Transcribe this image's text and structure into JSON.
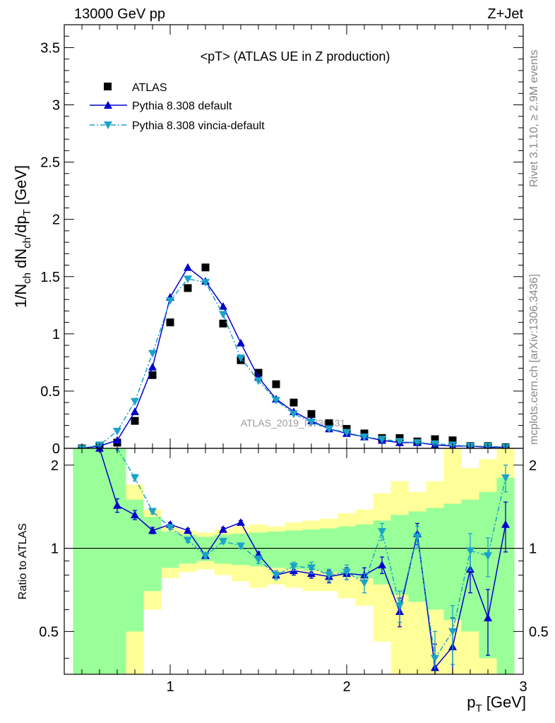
{
  "header": {
    "energy_label": "13000 GeV pp",
    "process_label": "Z+Jet",
    "plot_title": "<pT> (ATLAS UE in Z production)",
    "watermark": "ATLAS_2019_I1736531",
    "rivet_label": "Rivet 3.1.10, ≥ 2.9M events",
    "mcplots_label": "mcplots.cern.ch [arXiv:1306.3436]"
  },
  "chart_data": [
    {
      "type": "scatter",
      "panel": "main",
      "ylabel": "1/N_ch dN_ch/dp_T [GeV]",
      "xlim": [
        0.4,
        3.0
      ],
      "ylim": [
        0,
        3.7
      ],
      "yticks": [
        0,
        0.5,
        1,
        1.5,
        2,
        2.5,
        3,
        3.5
      ],
      "ytick_labels": [
        "0",
        "0.5",
        "1",
        "1.5",
        "2",
        "2.5",
        "3",
        "3.5"
      ],
      "legend_position": "top-left",
      "x": [
        0.5,
        0.6,
        0.7,
        0.8,
        0.9,
        1.0,
        1.1,
        1.2,
        1.3,
        1.4,
        1.5,
        1.6,
        1.7,
        1.8,
        1.9,
        2.0,
        2.1,
        2.2,
        2.3,
        2.4,
        2.5,
        2.6,
        2.7,
        2.8,
        2.9
      ],
      "series": [
        {
          "name": "ATLAS",
          "style": "square-marker",
          "color": "#000000",
          "values": [
            0.0,
            0.02,
            0.05,
            0.24,
            0.64,
            1.1,
            1.4,
            1.58,
            1.09,
            0.77,
            0.66,
            0.56,
            0.4,
            0.3,
            0.22,
            0.17,
            0.13,
            0.09,
            0.09,
            0.06,
            0.08,
            0.07,
            0.02,
            0.02,
            0.01
          ]
        },
        {
          "name": "Pythia 8.308 default",
          "style": "solid-line-triangle-up",
          "color": "#0000cc",
          "values": [
            0.0,
            0.02,
            0.07,
            0.32,
            0.71,
            1.32,
            1.58,
            1.46,
            1.24,
            0.92,
            0.62,
            0.43,
            0.32,
            0.24,
            0.17,
            0.13,
            0.1,
            0.07,
            0.05,
            0.05,
            0.03,
            0.02,
            0.02,
            0.01,
            0.01
          ]
        },
        {
          "name": "Pythia 8.308 vincia-default",
          "style": "dash-dot-line-triangle-down",
          "color": "#1aa3c8",
          "values": [
            0.0,
            0.03,
            0.15,
            0.41,
            0.83,
            1.29,
            1.48,
            1.45,
            1.17,
            0.79,
            0.59,
            0.42,
            0.3,
            0.23,
            0.17,
            0.14,
            0.1,
            0.08,
            0.06,
            0.05,
            0.04,
            0.03,
            0.02,
            0.02,
            0.01
          ]
        }
      ]
    },
    {
      "type": "line",
      "panel": "ratio",
      "xlabel": "p_T [GeV]",
      "ylabel": "Ratio to ATLAS",
      "xlim": [
        0.4,
        3.0
      ],
      "ylim": [
        0.35,
        2.3
      ],
      "xticks": [
        1,
        2,
        3
      ],
      "xtick_labels": [
        "1",
        "2",
        "3"
      ],
      "yticks": [
        0.5,
        1,
        2
      ],
      "ytick_labels": [
        "0.5",
        "1",
        "2"
      ],
      "reference_line": 1,
      "x": [
        0.5,
        0.6,
        0.7,
        0.8,
        0.9,
        1.0,
        1.1,
        1.2,
        1.3,
        1.4,
        1.5,
        1.6,
        1.7,
        1.8,
        1.9,
        2.0,
        2.1,
        2.2,
        2.3,
        2.4,
        2.5,
        2.6,
        2.7,
        2.8,
        2.9
      ],
      "bands": {
        "inner": {
          "name": "stat",
          "color": "#99ff99",
          "lower": [
            0.35,
            0.35,
            0.35,
            0.5,
            0.7,
            0.85,
            0.88,
            0.9,
            0.88,
            0.87,
            0.86,
            0.85,
            0.84,
            0.83,
            0.82,
            0.8,
            0.78,
            0.74,
            0.68,
            0.64,
            0.6,
            0.55,
            0.5,
            0.4,
            0.35
          ],
          "upper": [
            2.3,
            2.3,
            2.3,
            1.5,
            1.3,
            1.15,
            1.12,
            1.1,
            1.12,
            1.13,
            1.14,
            1.15,
            1.16,
            1.17,
            1.18,
            1.2,
            1.22,
            1.26,
            1.32,
            1.36,
            1.4,
            1.45,
            1.5,
            1.6,
            1.8
          ]
        },
        "outer": {
          "name": "stat+syst",
          "color": "#ffff99",
          "lower": [
            0.35,
            0.35,
            0.35,
            0.35,
            0.6,
            0.78,
            0.82,
            0.84,
            0.8,
            0.76,
            0.72,
            0.74,
            0.72,
            0.7,
            0.7,
            0.66,
            0.62,
            0.46,
            0.35,
            0.35,
            0.35,
            0.35,
            0.35,
            0.35,
            0.35
          ],
          "upper": [
            2.3,
            2.3,
            2.3,
            1.7,
            1.38,
            1.2,
            1.16,
            1.14,
            1.17,
            1.2,
            1.22,
            1.2,
            1.24,
            1.26,
            1.28,
            1.34,
            1.38,
            1.58,
            1.75,
            1.6,
            1.75,
            2.3,
            1.95,
            2.1,
            2.3
          ]
        }
      },
      "series": [
        {
          "name": "Pythia 8.308 default",
          "style": "solid-line-triangle-up",
          "color": "#0000cc",
          "values": [
            null,
            2.3,
            1.43,
            1.32,
            1.16,
            1.22,
            1.16,
            0.94,
            1.17,
            1.24,
            0.95,
            0.8,
            0.83,
            0.81,
            0.79,
            0.81,
            0.8,
            0.87,
            0.59,
            1.13,
            0.37,
            0.44,
            0.84,
            0.56,
            1.22
          ],
          "errors": [
            0,
            0,
            0.08,
            0.05,
            0.03,
            0.02,
            0.02,
            0.02,
            0.02,
            0.02,
            0.02,
            0.02,
            0.03,
            0.03,
            0.04,
            0.04,
            0.05,
            0.06,
            0.07,
            0.1,
            0.08,
            0.12,
            0.15,
            0.15,
            0.25
          ]
        },
        {
          "name": "Pythia 8.308 vincia-default",
          "style": "dash-dot-line-triangle-down",
          "color": "#1aa3c8",
          "values": [
            null,
            null,
            2.3,
            1.8,
            1.36,
            1.19,
            1.07,
            0.94,
            1.06,
            1.02,
            0.91,
            0.8,
            0.86,
            0.85,
            0.8,
            0.82,
            0.75,
            1.15,
            0.62,
            1.1,
            0.4,
            0.5,
            0.98,
            0.94,
            1.8
          ],
          "errors": [
            0,
            0,
            0,
            0.05,
            0.03,
            0.02,
            0.02,
            0.02,
            0.02,
            0.02,
            0.03,
            0.03,
            0.03,
            0.04,
            0.04,
            0.05,
            0.06,
            0.08,
            0.08,
            0.1,
            0.1,
            0.12,
            0.15,
            0.15,
            0.2
          ]
        }
      ]
    }
  ]
}
